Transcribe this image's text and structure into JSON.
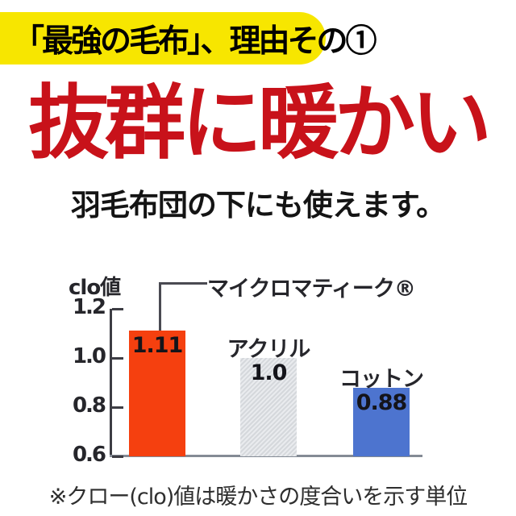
{
  "banner": {
    "text": "「最強の毛布」、理由その①",
    "bg_color": "#f7e600",
    "text_color": "#000000"
  },
  "headline": {
    "text": "抜群に暖かい",
    "color": "#c8121a"
  },
  "subheadline": {
    "text": "羽毛布団の下にも使えます。"
  },
  "footnote": {
    "text": "※クロー(clo)値は暖かさの度合いを示す単位"
  },
  "chart_data": {
    "type": "bar",
    "axis_label": "clo値",
    "ylim": [
      0.6,
      1.2
    ],
    "yticks": [
      1.2,
      1.0,
      0.8,
      0.6
    ],
    "grid": false,
    "categories": [
      "マイクロマティーク®",
      "アクリル",
      "コットン"
    ],
    "values": [
      1.11,
      1.0,
      0.88
    ],
    "bars": [
      {
        "label": "マイクロマティーク®",
        "value": 1.11,
        "value_label": "1.11",
        "color": "#f5400f",
        "label_position": "callout"
      },
      {
        "label": "アクリル",
        "value": 1.0,
        "value_label": "1.0",
        "color": "#dde0e4",
        "texture": true,
        "label_position": "above"
      },
      {
        "label": "コットン",
        "value": 0.88,
        "value_label": "0.88",
        "color": "#4d74cf",
        "label_position": "above"
      }
    ],
    "annotation": "※クロー(clo)値は暖かさの度合いを示す単位"
  }
}
